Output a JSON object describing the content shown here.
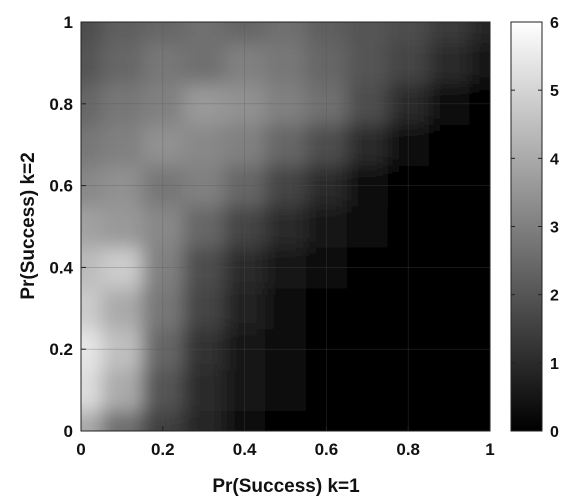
{
  "chart_data": {
    "type": "heatmap",
    "title": "",
    "xlabel": "Pr(Success) k=1",
    "ylabel": "Pr(Success) k=2",
    "xlim": [
      0,
      1
    ],
    "ylim": [
      0,
      1
    ],
    "xticks": [
      "0",
      "0.2",
      "0.4",
      "0.6",
      "0.8",
      "1"
    ],
    "yticks": [
      "0",
      "0.2",
      "0.4",
      "0.6",
      "0.8",
      "1"
    ],
    "grid": true,
    "colormap": "gray",
    "colorbar": {
      "range": [
        0,
        6
      ],
      "ticks": [
        "0",
        "1",
        "2",
        "3",
        "4",
        "5",
        "6"
      ],
      "placement": "right"
    },
    "x": [
      0,
      0.1,
      0.2,
      0.3,
      0.4,
      0.5,
      0.6,
      0.7,
      0.8,
      0.9,
      1
    ],
    "y": [
      0,
      0.1,
      0.2,
      0.3,
      0.4,
      0.5,
      0.6,
      0.7,
      0.8,
      0.9,
      1
    ],
    "z": [
      [
        4.0,
        2.6,
        1.5,
        0.9,
        0.4,
        0.1,
        0.0,
        0.0,
        0.0,
        0.0,
        0.0
      ],
      [
        5.2,
        4.0,
        2.0,
        1.0,
        0.5,
        0.2,
        0.0,
        0.0,
        0.0,
        0.0,
        0.0
      ],
      [
        5.4,
        4.5,
        2.4,
        1.2,
        0.6,
        0.2,
        0.05,
        0.0,
        0.0,
        0.0,
        0.0
      ],
      [
        4.8,
        4.0,
        2.8,
        1.6,
        0.8,
        0.3,
        0.1,
        0.0,
        0.0,
        0.0,
        0.0
      ],
      [
        4.4,
        4.8,
        3.0,
        1.8,
        1.0,
        0.6,
        0.2,
        0.1,
        0.0,
        0.0,
        0.0
      ],
      [
        3.8,
        3.6,
        3.2,
        2.4,
        1.6,
        1.0,
        0.5,
        0.2,
        0.1,
        0.0,
        0.0
      ],
      [
        3.2,
        3.4,
        2.8,
        3.0,
        2.4,
        1.6,
        1.0,
        0.4,
        0.15,
        0.05,
        0.0
      ],
      [
        2.8,
        3.0,
        3.4,
        3.2,
        3.0,
        2.4,
        1.8,
        1.0,
        0.4,
        0.1,
        0.0
      ],
      [
        2.4,
        2.8,
        3.0,
        3.6,
        3.4,
        3.0,
        2.6,
        1.8,
        1.0,
        0.4,
        0.1
      ],
      [
        2.0,
        2.4,
        2.8,
        2.6,
        3.0,
        2.8,
        2.4,
        2.0,
        1.6,
        1.0,
        0.5
      ],
      [
        1.8,
        2.2,
        2.4,
        2.6,
        2.4,
        2.6,
        2.2,
        2.0,
        1.8,
        1.4,
        0.9
      ]
    ]
  }
}
